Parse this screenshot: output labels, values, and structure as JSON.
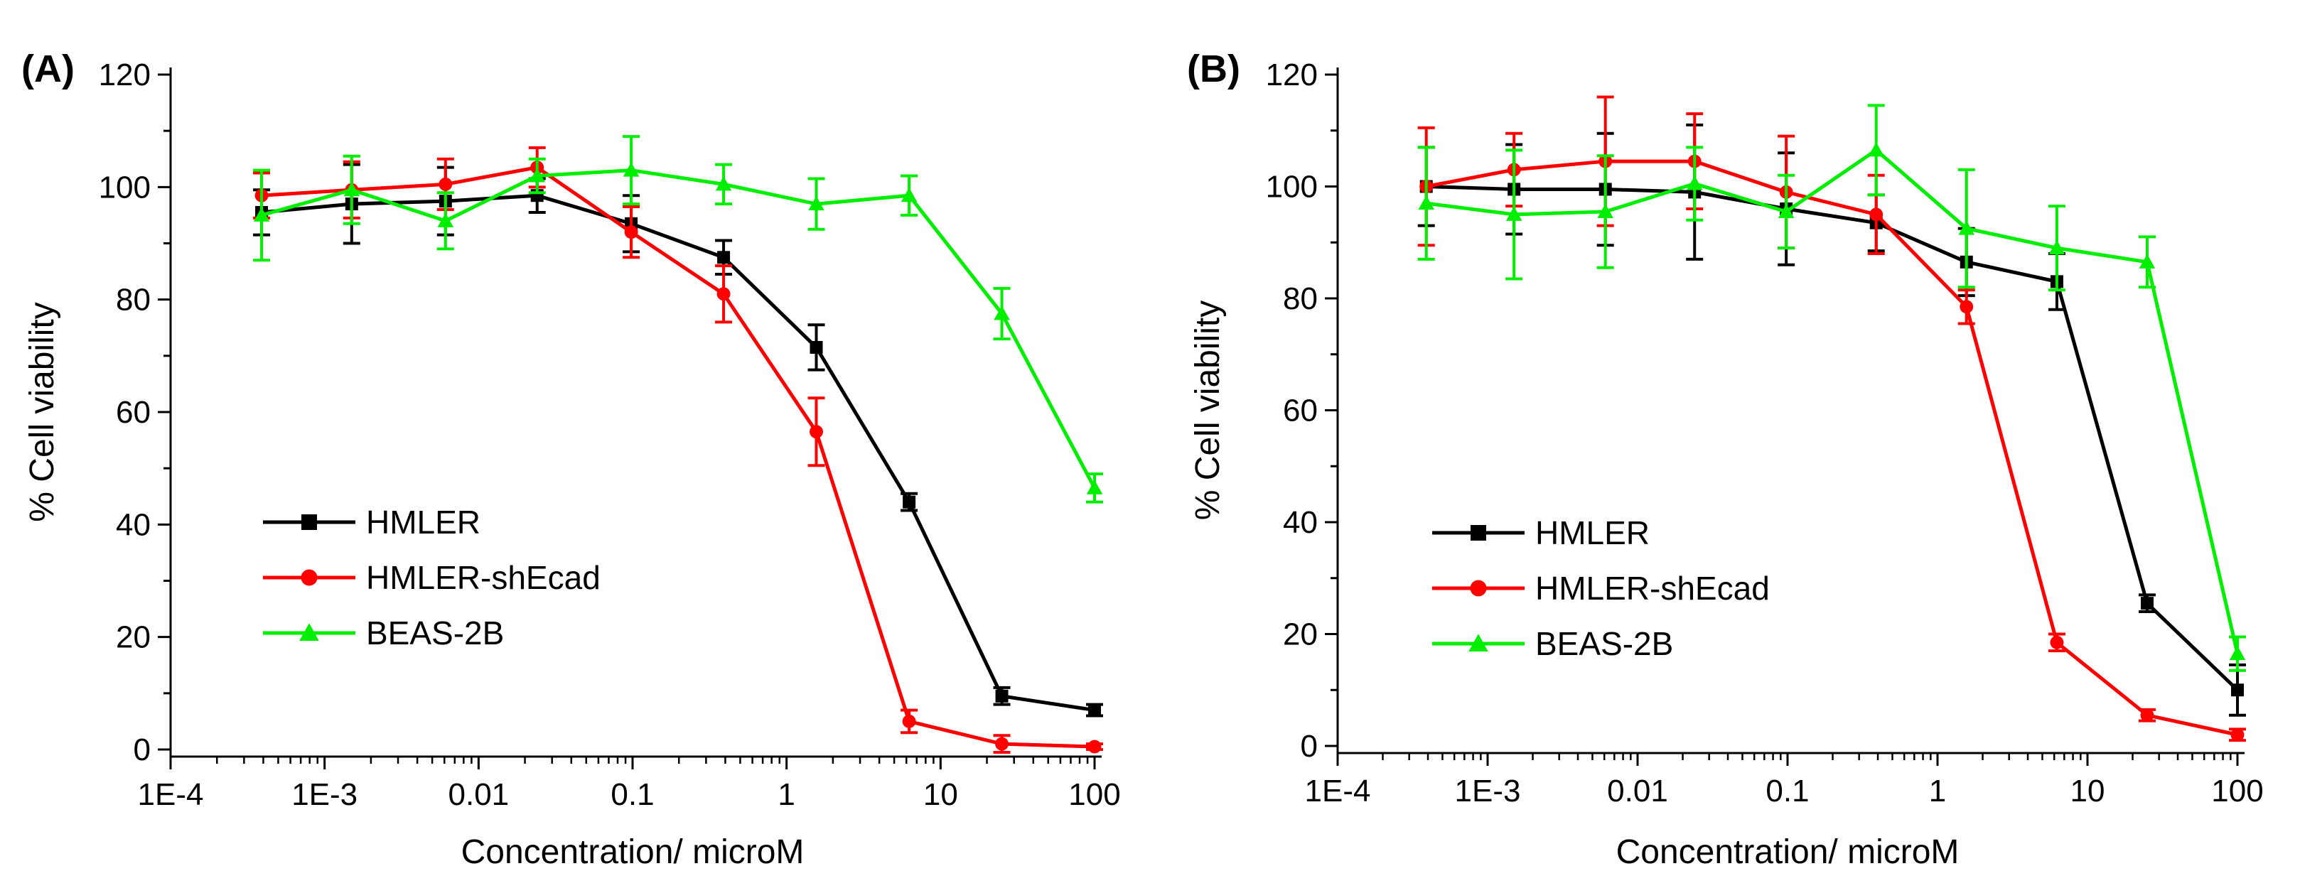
{
  "chart_data": [
    {
      "type": "line",
      "panel_label": "(A)",
      "xlabel": "Concentration/ microM",
      "ylabel": "% Cell viability",
      "xscale": "log",
      "xlim": [
        0.0001,
        100
      ],
      "ylim": [
        0,
        120
      ],
      "x_tick_labels": [
        "1E-4",
        "1E-3",
        "0.01",
        "0.1",
        "1",
        "10",
        "100"
      ],
      "x_tick_values": [
        0.0001,
        0.001,
        0.01,
        0.1,
        1,
        10,
        100
      ],
      "y_tick_labels": [
        "0",
        "20",
        "40",
        "60",
        "80",
        "100",
        "120"
      ],
      "y_tick_values": [
        0,
        20,
        40,
        60,
        80,
        100,
        120
      ],
      "legend_position": "lower-left",
      "x": [
        0.00039,
        0.0015,
        0.0061,
        0.024,
        0.098,
        0.39,
        1.56,
        6.25,
        25,
        100
      ],
      "series": [
        {
          "name": "HMLER",
          "color": "#000000",
          "marker": "square",
          "values": [
            95.5,
            97.0,
            97.5,
            98.5,
            93.5,
            87.5,
            71.5,
            44.0,
            9.5,
            7.0
          ],
          "errors": [
            4,
            7,
            6,
            3,
            5,
            3,
            4,
            1.5,
            1.5,
            1.0
          ]
        },
        {
          "name": "HMLER-shEcad",
          "color": "#ff0000",
          "marker": "circle",
          "values": [
            98.5,
            99.5,
            100.5,
            103.5,
            92.0,
            81.0,
            56.5,
            5.0,
            1.0,
            0.5
          ],
          "errors": [
            4,
            5,
            4.5,
            3.5,
            4.5,
            5,
            6,
            2,
            1.5,
            0.5
          ]
        },
        {
          "name": "BEAS-2B",
          "color": "#00ee00",
          "marker": "triangle",
          "values": [
            95.0,
            99.5,
            94.0,
            102.0,
            103.0,
            100.5,
            97.0,
            98.5,
            77.5,
            46.5
          ],
          "errors": [
            8,
            6,
            5,
            3,
            6,
            3.5,
            4.5,
            3.5,
            4.5,
            2.5
          ]
        }
      ]
    },
    {
      "type": "line",
      "panel_label": "(B)",
      "xlabel": "Concentration/ microM",
      "ylabel": "% Cell viability",
      "xscale": "log",
      "xlim": [
        0.0001,
        100
      ],
      "ylim": [
        0,
        120
      ],
      "x_tick_labels": [
        "1E-4",
        "1E-3",
        "0.01",
        "0.1",
        "1",
        "10",
        "100"
      ],
      "x_tick_values": [
        0.0001,
        0.001,
        0.01,
        0.1,
        1,
        10,
        100
      ],
      "y_tick_labels": [
        "0",
        "20",
        "40",
        "60",
        "80",
        "100",
        "120"
      ],
      "y_tick_values": [
        0,
        20,
        40,
        60,
        80,
        100,
        120
      ],
      "legend_position": "lower-left",
      "x": [
        0.00039,
        0.0015,
        0.0061,
        0.024,
        0.098,
        0.39,
        1.56,
        6.25,
        25,
        100
      ],
      "series": [
        {
          "name": "HMLER",
          "color": "#000000",
          "marker": "square",
          "values": [
            100.0,
            99.5,
            99.5,
            99.0,
            96.0,
            93.5,
            86.5,
            83.0,
            25.5,
            10.0
          ],
          "errors": [
            7,
            8,
            10,
            12,
            10,
            5,
            6,
            5,
            1.5,
            4.5
          ]
        },
        {
          "name": "HMLER-shEcad",
          "color": "#ff0000",
          "marker": "circle",
          "values": [
            100.0,
            103.0,
            104.5,
            104.5,
            99.0,
            95.0,
            78.5,
            18.5,
            5.5,
            2.0
          ],
          "errors": [
            10.5,
            6.5,
            11.5,
            8.5,
            10,
            7,
            3,
            1.5,
            1,
            1
          ]
        },
        {
          "name": "BEAS-2B",
          "color": "#00ee00",
          "marker": "triangle",
          "values": [
            97.0,
            95.0,
            95.5,
            100.5,
            95.5,
            106.5,
            92.5,
            89.0,
            86.5,
            16.5
          ],
          "errors": [
            10,
            11.5,
            10,
            6.5,
            6.5,
            8,
            10.5,
            7.5,
            4.5,
            3
          ]
        }
      ]
    }
  ]
}
